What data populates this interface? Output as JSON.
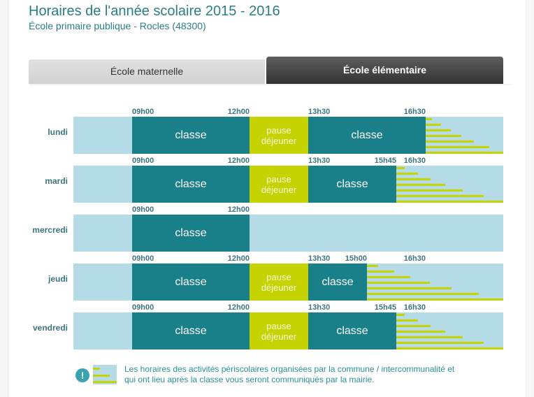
{
  "header": {
    "title": "Horaires de l'année scolaire 2015 - 2016",
    "subtitle": "École primaire publique - Rocles (48300)"
  },
  "tabs": [
    {
      "label": "École maternelle",
      "active": false
    },
    {
      "label": "École élémentaire",
      "active": true
    }
  ],
  "colors": {
    "classe": "#197f89",
    "pause": "#c5d303",
    "background_bar": "#b5dce6",
    "text_accent": "#2b7d86"
  },
  "timeline": {
    "start_hour": 7.5,
    "end_hour": 18.5
  },
  "schedule": [
    {
      "day": "lundi",
      "segments": [
        {
          "type": "classe",
          "label": "classe",
          "start": 9,
          "end": 12
        },
        {
          "type": "pause",
          "label": "pause déjeuner",
          "start": 12,
          "end": 13.5
        },
        {
          "type": "classe",
          "label": "classe",
          "start": 13.5,
          "end": 16.5
        }
      ],
      "times": [
        {
          "label": "09h00",
          "hour": 9,
          "align": "start"
        },
        {
          "label": "12h00",
          "hour": 12,
          "align": "end"
        },
        {
          "label": "13h30",
          "hour": 13.5,
          "align": "start"
        },
        {
          "label": "16h30",
          "hour": 16.5,
          "align": "end"
        }
      ],
      "periscolaire_from": 16.5
    },
    {
      "day": "mardi",
      "segments": [
        {
          "type": "classe",
          "label": "classe",
          "start": 9,
          "end": 12
        },
        {
          "type": "pause",
          "label": "pause déjeuner",
          "start": 12,
          "end": 13.5
        },
        {
          "type": "classe",
          "label": "classe",
          "start": 13.5,
          "end": 15.75
        }
      ],
      "times": [
        {
          "label": "09h00",
          "hour": 9,
          "align": "start"
        },
        {
          "label": "12h00",
          "hour": 12,
          "align": "end"
        },
        {
          "label": "13h30",
          "hour": 13.5,
          "align": "start"
        },
        {
          "label": "15h45",
          "hour": 15.75,
          "align": "end"
        },
        {
          "label": "16h30",
          "hour": 16.5,
          "align": "end"
        }
      ],
      "periscolaire_from": 15.75
    },
    {
      "day": "mercredi",
      "segments": [
        {
          "type": "classe",
          "label": "classe",
          "start": 9,
          "end": 12
        }
      ],
      "times": [
        {
          "label": "09h00",
          "hour": 9,
          "align": "start"
        },
        {
          "label": "12h00",
          "hour": 12,
          "align": "end"
        }
      ],
      "periscolaire_from": null
    },
    {
      "day": "jeudi",
      "segments": [
        {
          "type": "classe",
          "label": "classe",
          "start": 9,
          "end": 12
        },
        {
          "type": "pause",
          "label": "pause déjeuner",
          "start": 12,
          "end": 13.5
        },
        {
          "type": "classe",
          "label": "classe",
          "start": 13.5,
          "end": 15
        }
      ],
      "times": [
        {
          "label": "09h00",
          "hour": 9,
          "align": "start"
        },
        {
          "label": "12h00",
          "hour": 12,
          "align": "end"
        },
        {
          "label": "13h30",
          "hour": 13.5,
          "align": "start"
        },
        {
          "label": "15h00",
          "hour": 15,
          "align": "end"
        },
        {
          "label": "16h30",
          "hour": 16.5,
          "align": "end"
        }
      ],
      "periscolaire_from": 15
    },
    {
      "day": "vendredi",
      "segments": [
        {
          "type": "classe",
          "label": "classe",
          "start": 9,
          "end": 12
        },
        {
          "type": "pause",
          "label": "pause déjeuner",
          "start": 12,
          "end": 13.5
        },
        {
          "type": "classe",
          "label": "classe",
          "start": 13.5,
          "end": 15.75
        }
      ],
      "times": [
        {
          "label": "09h00",
          "hour": 9,
          "align": "start"
        },
        {
          "label": "12h00",
          "hour": 12,
          "align": "end"
        },
        {
          "label": "13h30",
          "hour": 13.5,
          "align": "start"
        },
        {
          "label": "15h45",
          "hour": 15.75,
          "align": "end"
        },
        {
          "label": "16h30",
          "hour": 16.5,
          "align": "end"
        }
      ],
      "periscolaire_from": 15.75
    }
  ],
  "note": {
    "icon": "exclamation-circle-icon",
    "text_line1": "Les horaires des activités périscolaires organisées par la commune / intercommunalité et",
    "text_line2": "qui ont lieu après la classe vous seront communiqués par la mairie."
  }
}
